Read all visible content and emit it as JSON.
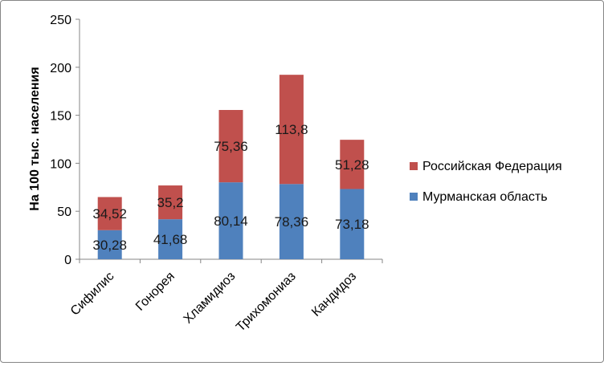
{
  "chart_data": {
    "type": "bar",
    "stacked": true,
    "title": "",
    "xlabel": "",
    "ylabel": "На 100 тыс. населения",
    "ylim": [
      0,
      250
    ],
    "yticks": [
      "0",
      "50",
      "100",
      "150",
      "200",
      "250"
    ],
    "categories": [
      "Сифилис",
      "Гонорея",
      "Хламидиоз",
      "Трихомониаз",
      "Кандидоз"
    ],
    "series": [
      {
        "name": "Мурманская область",
        "color": "#4f81bd",
        "values": [
          30.28,
          41.68,
          80.14,
          78.36,
          73.18
        ],
        "labels": [
          "30,28",
          "41,68",
          "80,14",
          "78,36",
          "73,18"
        ]
      },
      {
        "name": "Российская Федерация",
        "color": "#c0504d",
        "values": [
          34.52,
          35.2,
          75.36,
          113.8,
          51.28
        ],
        "labels": [
          "34,52",
          "35,2",
          "75,36",
          "113,8",
          "51,28"
        ]
      }
    ],
    "grid": false,
    "legend": "right"
  }
}
